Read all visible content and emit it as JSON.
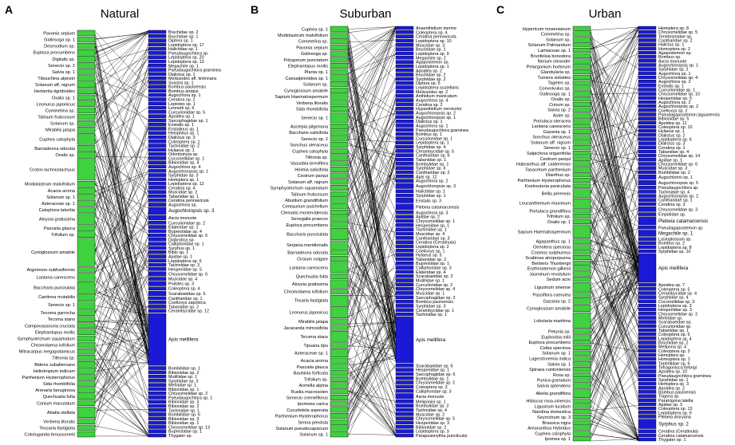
{
  "colors": {
    "plant": "#3fd13f",
    "pollinator": "#1a1ad6",
    "line": "#000000",
    "box_stroke": "#000000"
  },
  "panels": [
    {
      "letter": "A",
      "title": "Natural",
      "plants": [
        "Pavonia sepium",
        "Galinsoga sp. 1",
        "Desmodium sp.",
        "Euploca procumbens",
        "Digitalis sp.",
        "Senecio sp. 2",
        "Salvia sp. 1",
        "Tibouchina alpestri",
        "Solanum aff. nigrum",
        "Herbertia tigridioides",
        "Oxalis sp. 1",
        "Leonurus japonicus",
        "Commelina sp.",
        "Talinum fruticosum",
        "Solanum sp.",
        "Mirabilis jalapa",
        "Cuphea calophyla",
        "Barnadecea odorata",
        "Oxalis sp.",
        "Croton lachnostachyus",
        "Modiolastrum malvifolium",
        "Acacia aroma",
        "Solanum sp. 1",
        "Asteraceae sp. 1",
        "Calophora lateritia",
        "Aloysia gratissima",
        "Pascalia glauca",
        "Trifolium sp.",
        "Cynoglossum amabile",
        "Argemone subfusiformis",
        "Lantana canescens",
        "Baccharis punctulata",
        "Cantinoa mutabilis",
        "Senecio sp. 1",
        "Tecoma garrocha",
        "Tecoma stans",
        "Campovassouria cruciata",
        "Elephantopus mollis",
        "Symphyotrichum squamatum",
        "Chromolaena ivifolium",
        "Mitracarpus megapotamicus",
        "Tithonia sp.",
        "Bidens subalternans",
        "Heliotropium indicum",
        "Parthenium Hysterophorus",
        "Sida rhombifolia",
        "Arenaria lanuginosa",
        "Quechualia fulta",
        "Conium maculatum",
        "Abatia stellata",
        "Verbena litoralis",
        "Tessaria fastigiata",
        "Cotoluganda broussonetii"
      ],
      "pollinators": [
        "Bruchidae sp. 2",
        "Bruchidae sp. 1",
        "Diptera sp. 1",
        "Lepidoptera sp. 17",
        "Halictidae sp. 1",
        "Pseudaugochlora sp.",
        "Lepidoptera sp. 20",
        "Lepidoptera sp. 13",
        "Megachile sp. 1",
        "Pseudaugochlora graminea",
        "Dialictus sp. 1",
        "Melissodes aff. tintinnans",
        "Svastra sp. 1",
        "Bombus pauloensis",
        "Bombus atratus",
        "Augochlora sp. 1",
        "Ceratina sp. 2",
        "Leptotes sp. 1",
        "Leonetti sp. 6",
        "Curculionidae sp. 5",
        "Apoidea sp. 1",
        "Sarcophagidae sp. 1",
        "Eristalis sp. 1",
        "Eristalinus sp. 1",
        "Helophilus sp. 1",
        "Dialictus sp. 3",
        "Coleoptera sp. 1",
        "Tachinidae sp. 2",
        "Hylaeus sp. 1",
        "Odontomyia sp.",
        "Coccinellidae sp. 1",
        "Bibionidae sp. 4",
        "Augochlora sp. 4",
        "Augochloropsis sp. 1",
        "Syrphidae sp. 3",
        "Hemiptera sp. 1",
        "Lepidoptera sp. 12",
        "Ceratina sp. 4",
        "Muscidae sp. 2",
        "Tabanidae sp. 1",
        "Ceratina pennavicula",
        "Augochlora sp.",
        "Augochloropsis sp. 3",
        "Ascia monuste",
        "Curculionidae sp. 2",
        "Elateridae sp. 1",
        "Buprestidae sp. 4",
        "Chrysomelidae sp. 6",
        "Diabrotica sp.",
        "Calliphoridae sp. 1",
        "Syrphus sp. 1",
        "Bibio sp. 1",
        "Apidae sp. 1",
        "Lepidoptera sp. 6",
        "Tachinidae sp. 3",
        "Hesperiidae sp. 5",
        "Chrysomelidae sp. 6",
        "Muscidae sp. 4",
        "Polistes sp. 3",
        "Coleoptera sp. 4",
        "Scarabaeidae sp. 5",
        "Cantharidae sp. 1",
        "Coelioxys zapoteca",
        "Tabanidae sp. 2",
        "Cerambycidae sp. 12",
        "Apis mellifera",
        "Bombilidae sp. 1",
        "Bibionidae sp. 2",
        "Mutillidae sp. 1",
        "Syrphidae sp. 3",
        "Meloidae sp. 1",
        "Bibionidae sp. 1",
        "Chrysomelidae sp. 2",
        "Pseudaugochlora sp. 1",
        "Bibionidae sp. 3",
        "Bibionidae sp. 2",
        "Tachinidae sp. 1",
        "Bombilidae sp. 6",
        "Bibionidae sp. 3",
        "Bibionidae sp. 1",
        "Chrysomelidae sp. 13",
        "Buprestidae sp. 1",
        "Thygater sp."
      ]
    },
    {
      "letter": "B",
      "title": "Suburban",
      "plants": [
        "Cuphea sp. 1",
        "Modiolastrum malvifolium",
        "Commelina sp.",
        "Pavonia sepium",
        "Galinsoga sp.",
        "Polygonum punctatum",
        "Elephantopus mollis",
        "Planta sp. 1",
        "Caesalpinioidea sp. 1",
        "Solanum sp.",
        "Cynoglossum amabile",
        "Sapium Haematospermum",
        "Verbena litoralis",
        "Sida rhombifolia",
        "Senecio sp. 1",
        "Asclepia pilgeriana",
        "Baccharis salicifolia",
        "Senecio sp. 2",
        "Sonchus oleraceus",
        "Cuphea calophyla",
        "Tithonia sp.",
        "Vassobia breviflora",
        "Heimia salicifolia",
        "Cestrum parqui",
        "Solanum aff. nigrum",
        "Symphyotrichum squamatum",
        "Talinum fruticosum",
        "Abutilum grandifolium",
        "Centaurium pulchellum",
        "Clematis montevidensis",
        "Senegalia praecox",
        "Euploca procumbens",
        "Baccharis punctulata",
        "Serjania meridionalis",
        "Barnadecea odorata",
        "Cirsium vulgare",
        "Lantana canescens",
        "Quechualia fulta",
        "Aloysia gratissima",
        "Chromolaena ivifolium",
        "Tesaria fastigiata",
        "Leonurus japonicus",
        "Mirabilis jalapa",
        "Jacaranda mimosifolia",
        "Tecoma stans",
        "Tipuana tipu",
        "Asteraceae sp. 1",
        "Acacia aroma",
        "Pascalia glauca",
        "Bauhinia forficata",
        "Trifolium sp.",
        "Acmella alpina",
        "Ruelia macrosolen",
        "Senecio cremeiflorus",
        "Ipomoea carica",
        "Cucurbitela asperata",
        "Parthenium Hysterophorus",
        "Senna pendula",
        "Solanum pseudocapsicum",
        "Solanum sp. 1"
      ],
      "pollinators": [
        "Anaenthidium inerme",
        "Coleoptera sp. 4",
        "Ceratina pennavicula",
        "Lepidoptera sp. 10",
        "Muscidae sp. 3",
        "Bruchidae sp. 1",
        "Lepidoptera sp. 9",
        "Megachile sp. 2",
        "Agapostemon sp.",
        "Lepidoptera sp. 1",
        "Apoidea sp. 2",
        "Bruchidae sp. 2",
        "Syrphidae sp. 2",
        "Diptera sp. 5",
        "Lepidoptera scutellaris",
        "Melissodes sp. 2",
        "Anthidium manicatum",
        "Augochlora sp. 4",
        "Ceratina sp. 2",
        "Hypanthidium versicolor",
        "Augochloropsis sp. 2",
        "Augochloropsis sp. 1",
        "Dialictus sp. 1",
        "Augochlora sp. 1",
        "Pseudaugochlora graminea",
        "Bombus sp. 1",
        "Curculionidae sp. 1",
        "Lepidoptera sp. 1",
        "Syrphidae sp. 4",
        "Cerambycidae sp. 5",
        "Cantharidae sp. 6",
        "Tabanidae sp. 1",
        "Bombylidae sp. 1",
        "Syrphidae sp. 6",
        "Cantharidae sp. 2",
        "Apis sp. 12",
        "Augochlora sp. 2",
        "Augochloropsis sp. 3",
        "Halictidae sp. 1",
        "Syrphidae sp. 1",
        "Eristalis sp. 3",
        "Plebeia catamarcensis",
        "Augochlora sp. 3",
        "Apidae sp. 2",
        "Chrysomelidae sp. 1",
        "Hesperiidae sp. 1",
        "Tachinidae sp. 1",
        "Muscidae sp. 4",
        "Cantharidae sp. 3",
        "Ceratina (Ceratinula)",
        "Lepidoptera sp. 2",
        "Coelioxys sp. 1",
        "Hylaeus sp. 5",
        "Tabanidae sp. 2",
        "Buprestidae sp. 1",
        "Calliphoridae sp. 3",
        "Elateridae sp. 4",
        "Scarabaeidae sp. 2",
        "Mutillidae sp. 1",
        "Curculionidae sp. 2",
        "Chrysomelidae sp. 4",
        "Muscidae sp. 1",
        "Sarcophagidae sp. 2",
        "Bombus pauloensis",
        "Syrphidae sp. 3",
        "Cerambycidae sp. 1",
        "Tachinidae sp. 1",
        "Apis mellifera",
        "Scarabaeidae sp. 6",
        "Hesperiidae sp. 1",
        "Sarcophagidae sp. 6",
        "Bombylidae sp. 1",
        "Chrysomelidae sp. 2",
        "Coleoptera sp. 3",
        "Calliphoridae sp. 3",
        "Ascia monuste",
        "Meliponini sp. 1",
        "Bombylidae sp. 2",
        "Tachinidae sp. 4",
        "Muscidae sp. 2",
        "Chrysomelidae sp. 5",
        "Hesperiidae sp. 3",
        "Bibionidae sp. 2",
        "Lepidoptera sp. 3",
        "Parapsaenythia puncticutis"
      ]
    },
    {
      "letter": "C",
      "title": "Urban",
      "plants": [
        "Hypericum mosenianum",
        "Commelina sp.",
        "Solanum sp.",
        "Solanum Palmandum",
        "Lamiaceae sp. 1",
        "Brunfelsia bonodora",
        "Nerium oleander",
        "Pelargonium hortorum",
        "Glandularia sp.",
        "Turnera sidoides",
        "Tagetes sp.",
        "Convolvulus sp.",
        "Galinsoga sp. 1",
        "Oxalis sp.",
        "Crinum sp.",
        "Salvia sp. 2",
        "Aster sp.",
        "Portulaca oleracea",
        "Lantana canescens",
        "Gazania sp. 1",
        "Sonchus oleraceus",
        "Solanum aff. nigrum",
        "Senecio sp. 1",
        "Salpichroa origanifolia",
        "Cestrum parqui",
        "Habranthus aff. calderensis",
        "Tanacetum parthenium",
        "Dianthus sp.",
        "Parthenium Hysterophorus",
        "Koelreuteria paniculata",
        "Bellis perennis",
        "Leucanthemum maximum",
        "Portulaca grandiflora",
        "Trifolium sp.",
        "Oxalis sp. 1",
        "Sapium Haematospermum",
        "Agapanthus sp. 1",
        "Oenotera speciosa",
        "Cosmos sulphureus",
        "Scabiosa atropurpurea",
        "Berberis Thunbergii",
        "Erythrostemon gilliesii",
        "Jasminum revolutum",
        "Sedum acre",
        "Ligustrum sinense",
        "Passiflora caerulea",
        "Gazania sp. 2",
        "Cynoglossum amabile",
        "Lobularia maritima",
        "Petunia sp.",
        "Euphorbia milii",
        "Euploca procumbens",
        "Ceiba speciosa",
        "Solanum sp. 1",
        "Lagerstroemia indica",
        "Salvia sp. 1",
        "Spiraea cantoniensis",
        "Rosa sp.",
        "Punica granatum",
        "Salvia splendens",
        "Abelia grandiflora",
        "Hibiscus rosa-sinensis",
        "Ligustrum lucidum",
        "Nandina domestica",
        "Seyrnchum sp. 3",
        "Brassica nigra",
        "Amaranthus Hybridus",
        "Cuphea calophyla",
        "Ipomea sp. 1"
      ],
      "pollinators": [
        "Hemiptera sp. 8",
        "Chrysomelidae sp. 5",
        "Tenebrionidae sp.",
        "Cantharidae sp. 2",
        "Halictus sp. 1",
        "Homoptera sp. 2",
        "Agapostemon sp.",
        "Bombus sp.",
        "Ascia monuste",
        "Augochloropsis sp. 1",
        "Syrphidae sp. 2",
        "Augochlora sp. 1",
        "Chrysomelidae sp. 4",
        "Augochlora sp. 2",
        "Eristalis sp. 1",
        "Curculionidae sp. 1",
        "Chrysomelidae sp. 10",
        "Hesperiidae sp. 5",
        "Augochlora sp. 2",
        "Augochloropsis sp. 2",
        "Coelioxys sp. 2",
        "Pseudagapostemon jaguarensis",
        "Bibionidae sp. 5",
        "Apoidea sp. 11",
        "Coleoptera sp. 10",
        "Hylaeus sp. 1",
        "Dialictus sp. 2",
        "Lepidoptera sp. 6",
        "Dialictus sp. 3",
        "Ceratina sp. 1",
        "Tabanidae sp. 4",
        "Chrysomelidae sp. 14",
        "Apidae sp. 1",
        "Chrysomelidae sp. 6",
        "Muscidae sp. 3",
        "Bombilidae sp. 2",
        "Augochlorini sp. 1",
        "Augochloropsis sp. 5",
        "Pseudaugochlora sp.",
        "Tachinidae sp. 4",
        "Augochloropsis sp. 2",
        "Cantharidae sp. 1",
        "Ceratina sp. 3",
        "Chrysomelidae sp. 3",
        "Empididae sp.",
        "Plebeia catamarcensis",
        "Pseudagapostemon sp.",
        "Megachile sp. 1",
        "Lasioglossum sp.",
        "Bombus sp. 2",
        "Lepidoptera sp. 8",
        "Syrphidae sp. 10",
        "Apis mellifera",
        "Apoidea sp. 7",
        "Coleoptera sp. 5",
        "Cerambycidae sp. 4",
        "Syrphidae sp. 4",
        "Coccinellidae sp. 3",
        "Lepidoptera sp. 3",
        "Hesperiidae sp. 3",
        "Chrysomelidae sp. 2",
        "Meloidae sp.",
        "Scarabaeidae sp.",
        "Curculionidae sp.",
        "Tabanidae sp. 1",
        "Coleoptera sp. 6",
        "Lepidoptera sp. 4",
        "Bruchidae sp. 2",
        "Melipona sp. 4",
        "Coleoptera sp. 3",
        "Hemiptera sp.",
        "Homoptera sp. 1",
        "Tephritidae sp. 6",
        "Tetragonisca fiebrigi",
        "Apoidea sp. 10",
        "Pseudaugochlora graminea",
        "Syrphidae sp. 1",
        "Hemiptera sp. 3",
        "Apoidea sp. 2",
        "Bombus pauloensis",
        "Trigona sp.",
        "Paratrigona latella",
        "Apidae sp. 3",
        "Coleoptera sp. 13",
        "Lepidoptera sp. 9",
        "Plebeia droryana",
        "Syrphus sp. 2",
        "Ceratina (Ceratinula)",
        "Ceratina catamarcensis",
        "Thygater sp. 1"
      ]
    }
  ]
}
